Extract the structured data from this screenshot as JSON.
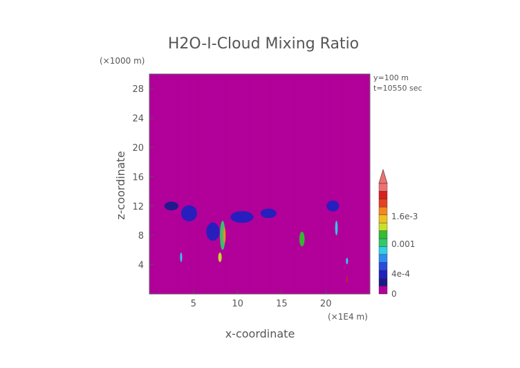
{
  "chart_data": {
    "type": "heatmap",
    "title": "H2O-I-Cloud Mixing Ratio",
    "xlabel": "x-coordinate",
    "ylabel": "z-coordinate",
    "x_unit": "(×1E4 m)",
    "y_unit": "(×1000 m)",
    "annotations": [
      "y=100 m",
      "t=10550 sec"
    ],
    "x_ticks": [
      5,
      10,
      15,
      20
    ],
    "y_ticks": [
      4,
      8,
      12,
      16,
      20,
      24,
      28
    ],
    "xlim": [
      0,
      25
    ],
    "ylim": [
      0,
      30
    ],
    "background_value": 0,
    "colorbar": {
      "ticks": [
        {
          "value": "1.6e-3",
          "level": 0.7
        },
        {
          "value": "0.001",
          "level": 0.45
        },
        {
          "value": "4e-4",
          "level": 0.18
        },
        {
          "value": "0",
          "level": 0.0
        }
      ],
      "colors": [
        "#b3009b",
        "#1a1a8c",
        "#2020bf",
        "#2a4be0",
        "#2f8cf0",
        "#2fd0e8",
        "#31c96b",
        "#2fbf2f",
        "#c8e02a",
        "#f0c020",
        "#f08a20",
        "#e84020",
        "#d82020",
        "#f07070"
      ],
      "extend": "max",
      "arrow_color": "#f07070"
    },
    "regions": [
      {
        "x": 2.5,
        "z": 12.0,
        "wx": 1.6,
        "wz": 1.2,
        "level": 1
      },
      {
        "x": 4.5,
        "z": 11.0,
        "wx": 1.8,
        "wz": 2.2,
        "level": 2
      },
      {
        "x": 3.6,
        "z": 5.0,
        "wx": 0.25,
        "wz": 1.3,
        "level": 5
      },
      {
        "x": 7.2,
        "z": 8.5,
        "wx": 1.5,
        "wz": 2.5,
        "level": 2
      },
      {
        "x": 8.3,
        "z": 8.0,
        "wx": 0.6,
        "wz": 4.0,
        "level": 6
      },
      {
        "x": 8.5,
        "z": 8.0,
        "wx": 0.3,
        "wz": 2.2,
        "level": 10
      },
      {
        "x": 8.0,
        "z": 5.0,
        "wx": 0.4,
        "wz": 1.3,
        "level": 8
      },
      {
        "x": 10.5,
        "z": 10.5,
        "wx": 2.6,
        "wz": 1.6,
        "level": 2
      },
      {
        "x": 13.5,
        "z": 11.0,
        "wx": 1.8,
        "wz": 1.3,
        "level": 2
      },
      {
        "x": 17.3,
        "z": 7.5,
        "wx": 0.6,
        "wz": 2.0,
        "level": 7
      },
      {
        "x": 20.8,
        "z": 12.0,
        "wx": 1.4,
        "wz": 1.5,
        "level": 2
      },
      {
        "x": 21.2,
        "z": 9.0,
        "wx": 0.3,
        "wz": 2.0,
        "level": 5
      },
      {
        "x": 22.4,
        "z": 4.5,
        "wx": 0.25,
        "wz": 0.9,
        "level": 5
      },
      {
        "x": 22.4,
        "z": 2.0,
        "wx": 0.15,
        "wz": 0.9,
        "level": 12
      }
    ]
  }
}
